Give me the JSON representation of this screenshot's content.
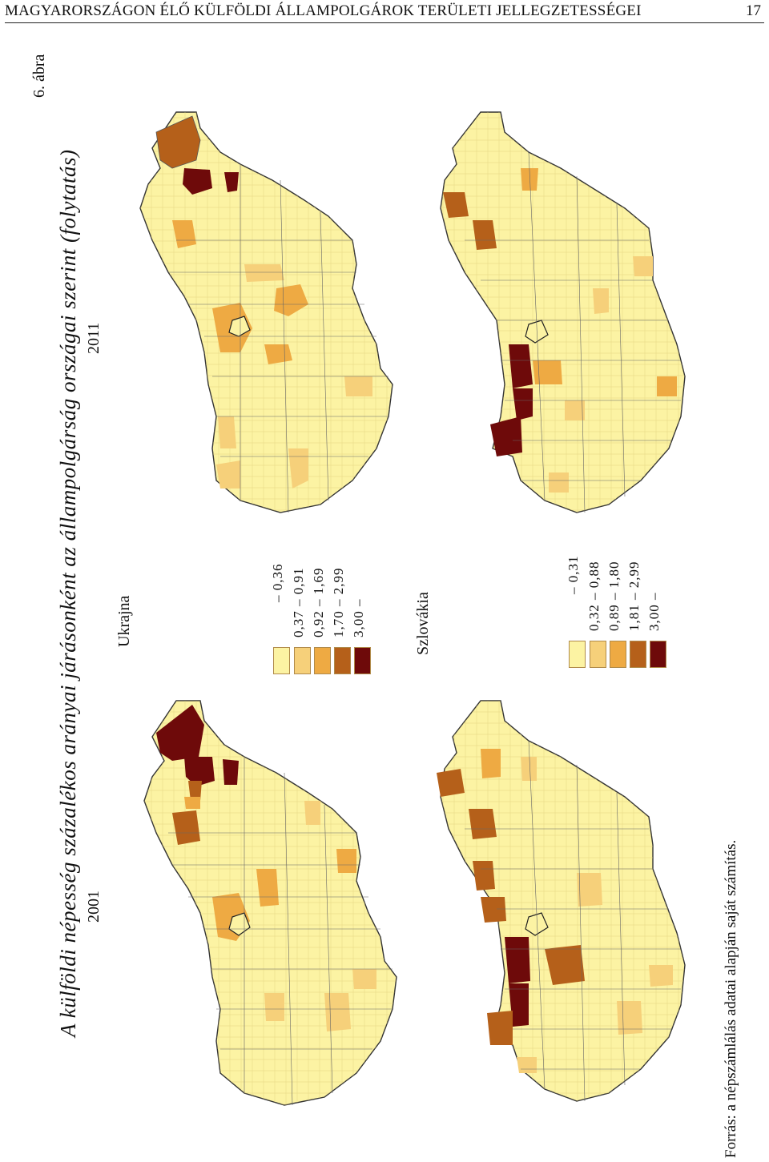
{
  "header": {
    "running_title": "MAGYARORSZÁGON ÉLŐ KÜLFÖLDI ÁLLAMPOLGÁROK TERÜLETI JELLEGZETESSÉGEI",
    "page_number": "17"
  },
  "figure": {
    "label": "6. ábra",
    "caption": "A külföldi népesség százalékos arányai járásonként az állampolgárság országai szerint (folytatás)",
    "years": [
      "2001",
      "2011"
    ],
    "source": "Forrás: a népszámlálás adatai alapján saját számítás."
  },
  "legends": [
    {
      "country": "Ukrajna",
      "classes": [
        {
          "label": "– 0,36",
          "color": "#fcf3a3"
        },
        {
          "label": "0,37 – 0,91",
          "color": "#f6d07a"
        },
        {
          "label": "0,92 – 1,69",
          "color": "#eeaa43"
        },
        {
          "label": "1,70 – 2,99",
          "color": "#b5601a"
        },
        {
          "label": "3,00 –",
          "color": "#6e0a0a"
        }
      ]
    },
    {
      "country": "Szlovákia",
      "classes": [
        {
          "label": "– 0,31",
          "color": "#fcf3a3"
        },
        {
          "label": "0,32 – 0,88",
          "color": "#f6d07a"
        },
        {
          "label": "0,89 – 1,80",
          "color": "#eeaa43"
        },
        {
          "label": "1,81 – 2,99",
          "color": "#b5601a"
        },
        {
          "label": "3,00 –",
          "color": "#6e0a0a"
        }
      ]
    }
  ]
}
